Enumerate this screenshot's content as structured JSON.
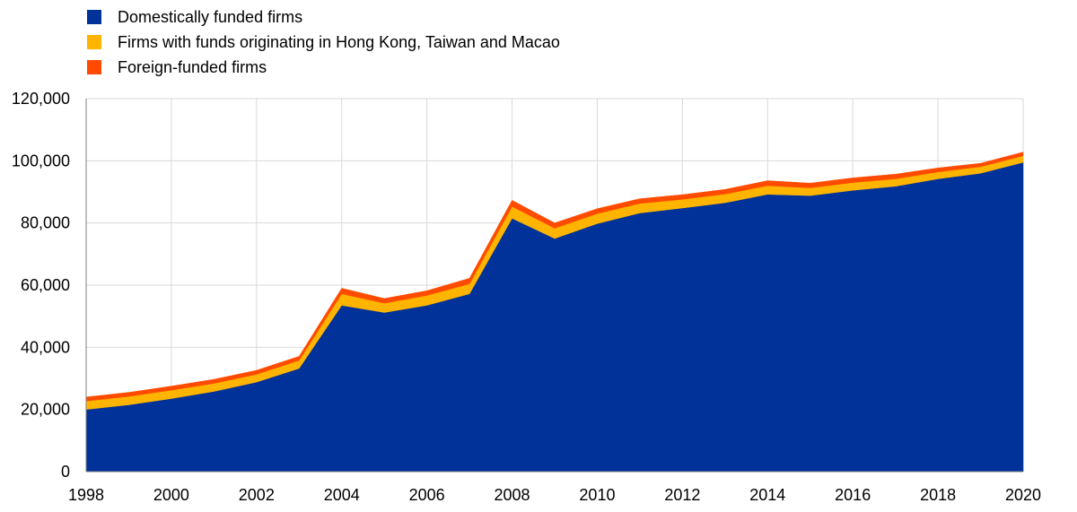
{
  "chart_data": {
    "type": "area",
    "stacked": true,
    "title": "",
    "xlabel": "",
    "ylabel": "",
    "x": [
      1998,
      1999,
      2000,
      2001,
      2002,
      2003,
      2004,
      2005,
      2006,
      2007,
      2008,
      2009,
      2010,
      2011,
      2012,
      2013,
      2014,
      2015,
      2016,
      2017,
      2018,
      2019,
      2020
    ],
    "xticks": [
      "1998",
      "2000",
      "2002",
      "2004",
      "2006",
      "2008",
      "2010",
      "2012",
      "2014",
      "2016",
      "2018",
      "2020"
    ],
    "yticks": [
      "0",
      "20,000",
      "40,000",
      "60,000",
      "80,000",
      "100,000",
      "120,000"
    ],
    "ylim": [
      0,
      120000
    ],
    "grid": true,
    "legend_position": "top-left",
    "series": [
      {
        "name": "Domestically funded firms",
        "color": "#003299",
        "values": [
          20000,
          21500,
          23500,
          25800,
          28800,
          33200,
          53500,
          51200,
          53500,
          57200,
          81500,
          75000,
          79800,
          83200,
          84800,
          86500,
          89200,
          88800,
          90500,
          91800,
          94200,
          96000,
          99500
        ]
      },
      {
        "name": "Firms with funds originating in Hong Kong, Taiwan and Macao",
        "color": "#FFB400",
        "values": [
          2700,
          2700,
          2700,
          2600,
          2500,
          2600,
          3700,
          3000,
          3200,
          3200,
          3800,
          3300,
          3200,
          3100,
          2800,
          2800,
          2800,
          2500,
          2500,
          2400,
          2200,
          2100,
          2100
        ]
      },
      {
        "name": "Foreign-funded firms",
        "color": "#FF4B00",
        "values": [
          1300,
          1300,
          1300,
          1300,
          1300,
          1300,
          1800,
          1500,
          1500,
          1800,
          2000,
          1700,
          1600,
          1500,
          1500,
          1500,
          1600,
          1500,
          1500,
          1500,
          1300,
          1100,
          1200
        ]
      }
    ]
  }
}
